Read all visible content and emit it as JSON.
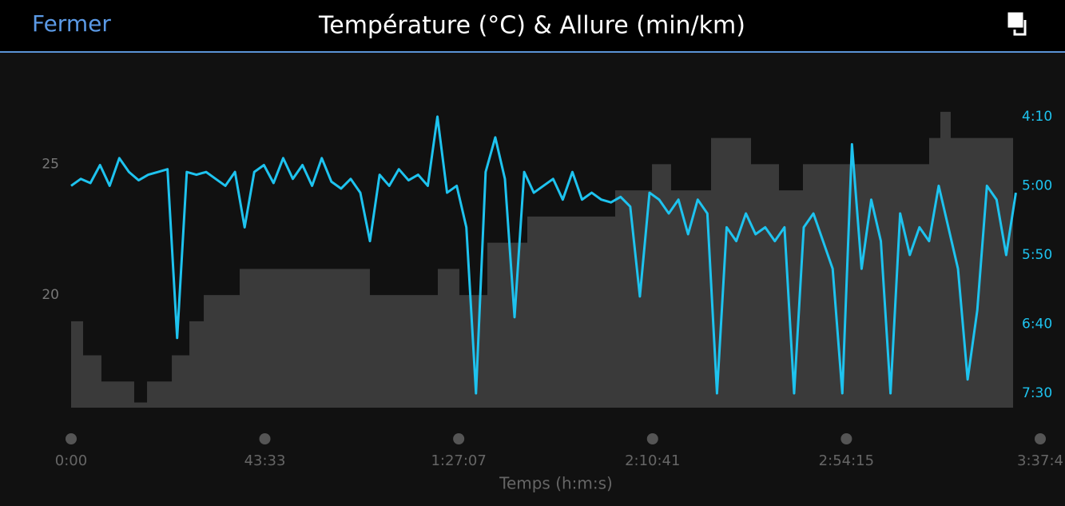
{
  "header": {
    "close": "Fermer"
  },
  "chart_data": {
    "type": "line",
    "title": "Température (°C) & Allure (min/km)",
    "x_label": "Temps (h:m:s)",
    "xlim": [
      0,
      13069
    ],
    "xticks": [
      {
        "value": 0,
        "label": "0:00"
      },
      {
        "value": 2613,
        "label": "43:33"
      },
      {
        "value": 5227,
        "label": "1:27:07"
      },
      {
        "value": 7841,
        "label": "2:10:41"
      },
      {
        "value": 10455,
        "label": "2:54:15"
      },
      {
        "value": 13069,
        "label": "3:37:4"
      }
    ],
    "ylim": [
      15.7,
      27.3
    ],
    "yticks": [
      20,
      25
    ],
    "y2lim": [
      460.4,
      240.8
    ],
    "y2ticks": [
      {
        "value": 250,
        "label": "4:10"
      },
      {
        "value": 300,
        "label": "5:00"
      },
      {
        "value": 350,
        "label": "5:50"
      },
      {
        "value": 400,
        "label": "6:40"
      },
      {
        "value": 450,
        "label": "7:30"
      }
    ],
    "series": [
      {
        "type": "area",
        "color": "#3a3a3a",
        "x": [
          0,
          162,
          162,
          409,
          409,
          851,
          851,
          1024,
          1024,
          1358,
          1358,
          1595,
          1595,
          1789,
          1789,
          2273,
          2273,
          4029,
          4029,
          4945,
          4945,
          5236,
          5236,
          5613,
          5613,
          6152,
          6152,
          7337,
          7337,
          7833,
          7833,
          8091,
          8091,
          8630,
          8630,
          9169,
          9169,
          9546,
          9546,
          9869,
          9869,
          11571,
          11571,
          11722,
          11722,
          11862,
          11862,
          12703
        ],
        "values": [
          19.0,
          19.0,
          17.7,
          17.7,
          16.7,
          16.7,
          15.9,
          15.9,
          16.7,
          16.7,
          17.7,
          17.7,
          19.0,
          19.0,
          20.0,
          20.0,
          21.0,
          21.0,
          20.0,
          20.0,
          21.0,
          21.0,
          20.0,
          20.0,
          22.0,
          22.0,
          23.0,
          23.0,
          24.0,
          24.0,
          25.0,
          25.0,
          24.0,
          24.0,
          26.0,
          26.0,
          25.0,
          25.0,
          24.0,
          24.0,
          25.0,
          25.0,
          26.0,
          26.0,
          27.0,
          27.0,
          26.0,
          26.0
        ]
      },
      {
        "type": "line",
        "axis": "y2",
        "color": "#1ec3ef",
        "x": [
          0,
          130,
          260,
          390,
          520,
          650,
          780,
          910,
          1040,
          1170,
          1300,
          1430,
          1560,
          1690,
          1820,
          1950,
          2080,
          2210,
          2340,
          2470,
          2600,
          2730,
          2860,
          2990,
          3120,
          3250,
          3380,
          3510,
          3640,
          3770,
          3900,
          4030,
          4160,
          4290,
          4420,
          4550,
          4680,
          4810,
          4940,
          5070,
          5200,
          5330,
          5460,
          5590,
          5720,
          5850,
          5980,
          6110,
          6240,
          6370,
          6500,
          6630,
          6760,
          6890,
          7020,
          7150,
          7280,
          7410,
          7540,
          7670,
          7800,
          7930,
          8060,
          8190,
          8320,
          8450,
          8580,
          8710,
          8840,
          8970,
          9100,
          9230,
          9360,
          9490,
          9620,
          9750,
          9880,
          10010,
          10140,
          10270,
          10400,
          10530,
          10660,
          10790,
          10920,
          11050,
          11180,
          11310,
          11440,
          11570,
          11700,
          11830,
          11960,
          12090,
          12220,
          12350,
          12480,
          12610,
          12740
        ],
        "values": [
          300,
          295,
          298,
          285,
          300,
          280,
          290,
          296,
          292,
          290,
          288,
          410,
          290,
          292,
          290,
          295,
          300,
          290,
          330,
          290,
          285,
          298,
          280,
          295,
          285,
          300,
          280,
          297,
          302,
          295,
          305,
          340,
          292,
          300,
          288,
          296,
          292,
          300,
          250,
          305,
          300,
          330,
          450,
          290,
          265,
          295,
          395,
          290,
          305,
          300,
          295,
          310,
          290,
          310,
          305,
          310,
          312,
          308,
          315,
          380,
          305,
          310,
          320,
          310,
          335,
          310,
          320,
          450,
          330,
          340,
          320,
          335,
          330,
          340,
          330,
          450,
          330,
          320,
          340,
          360,
          450,
          270,
          360,
          310,
          340,
          450,
          320,
          350,
          330,
          340,
          300,
          330,
          360,
          440,
          390,
          300,
          310,
          350,
          305
        ]
      }
    ]
  }
}
